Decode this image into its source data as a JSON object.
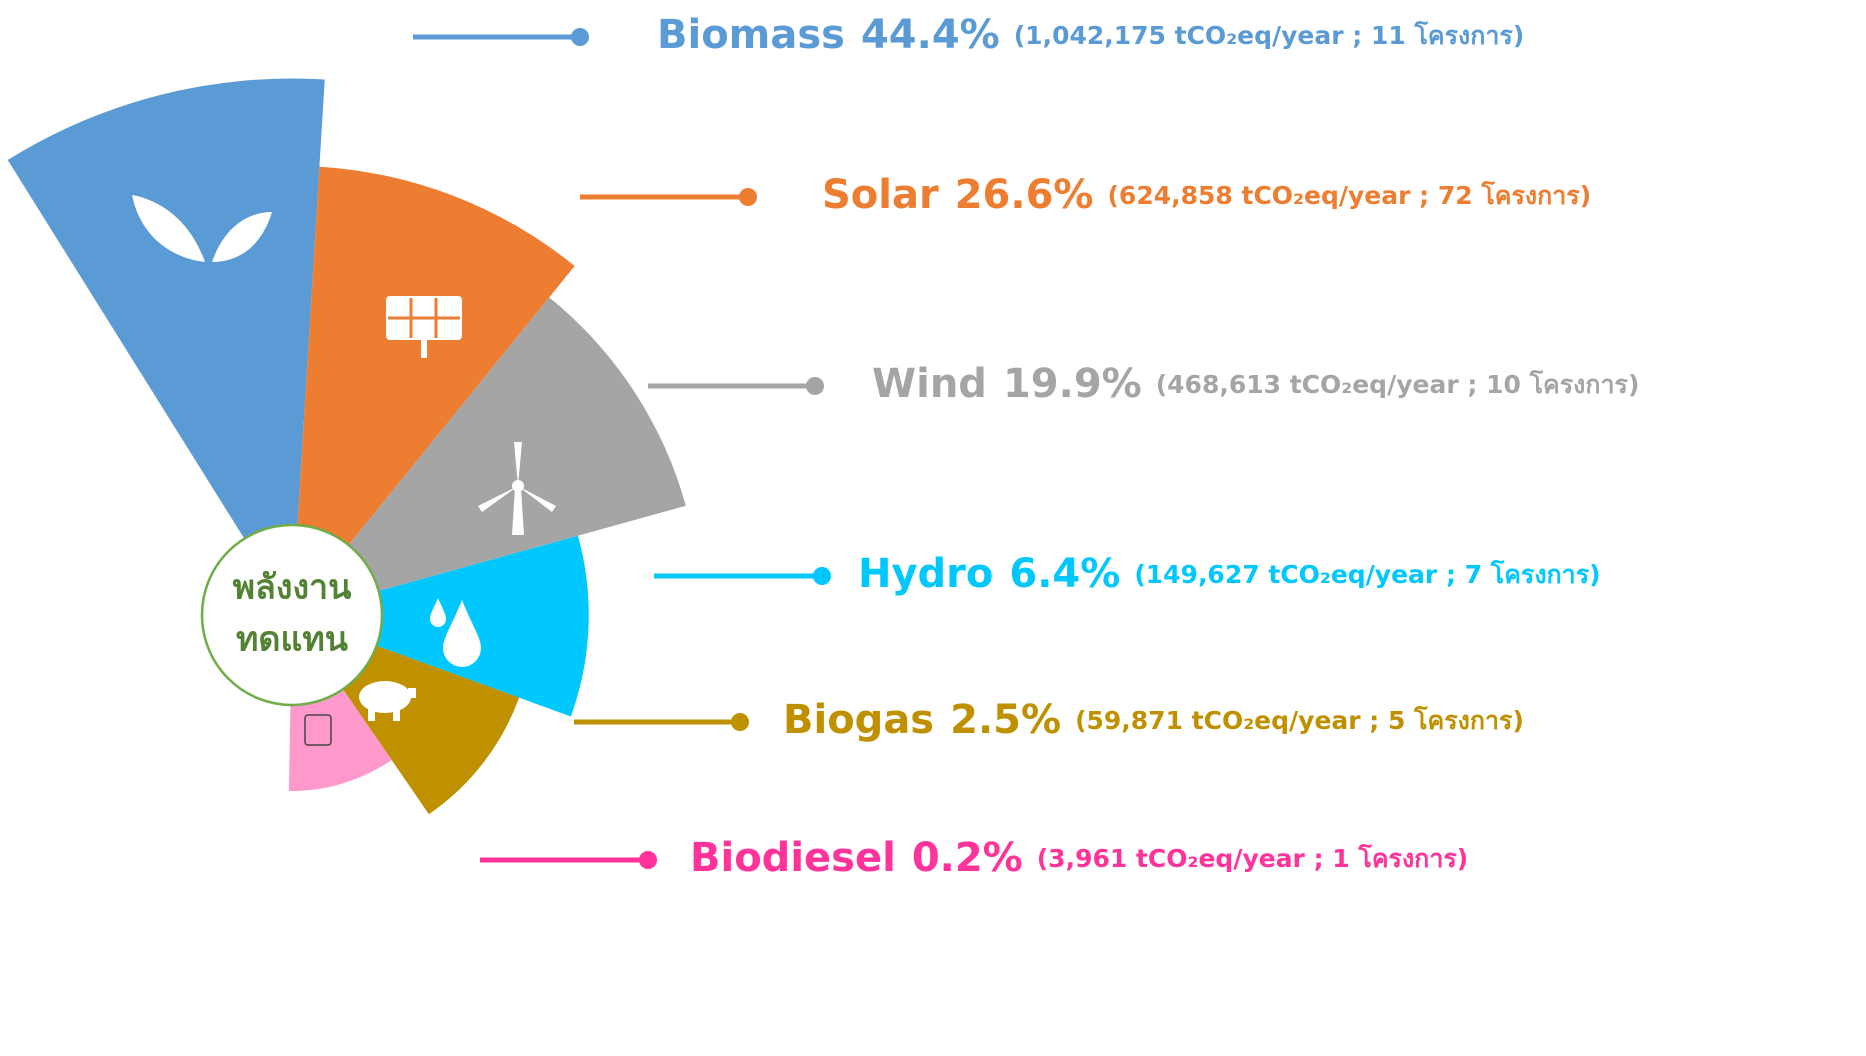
{
  "chart_data": {
    "type": "rose",
    "center_label": [
      "พลังงาน",
      "ทดแทน"
    ],
    "categories": [
      "Biomass",
      "Solar",
      "Wind",
      "Hydro",
      "Biogas",
      "Biodiesel"
    ],
    "values": [
      44.4,
      26.6,
      19.9,
      6.4,
      2.5,
      0.2
    ],
    "value_labels": [
      "44.4%",
      "26.6%",
      "19.9%",
      "6.4%",
      "2.5%",
      "0.2%"
    ],
    "details": [
      "(1,042,175 tCO₂eq/year ; 11 โครงการ)",
      "(624,858 tCO₂eq/year ; 72 โครงการ)",
      "(468,613 tCO₂eq/year ; 10 โครงการ)",
      "(149,627 tCO₂eq/year ; 7 โครงการ)",
      "(59,871 tCO₂eq/year ; 5 โครงการ)",
      "(3,961 tCO₂eq/year ; 1 โครงการ)"
    ],
    "colors": [
      "#5b9bd5",
      "#ed7d31",
      "#a5a5a5",
      "#00c8ff",
      "#bf9000",
      "#ff99cc"
    ],
    "label_colors": [
      "#5b9bd5",
      "#ed7d31",
      "#a5a5a5",
      "#00c8ff",
      "#bf9000",
      "#ff3399"
    ]
  }
}
